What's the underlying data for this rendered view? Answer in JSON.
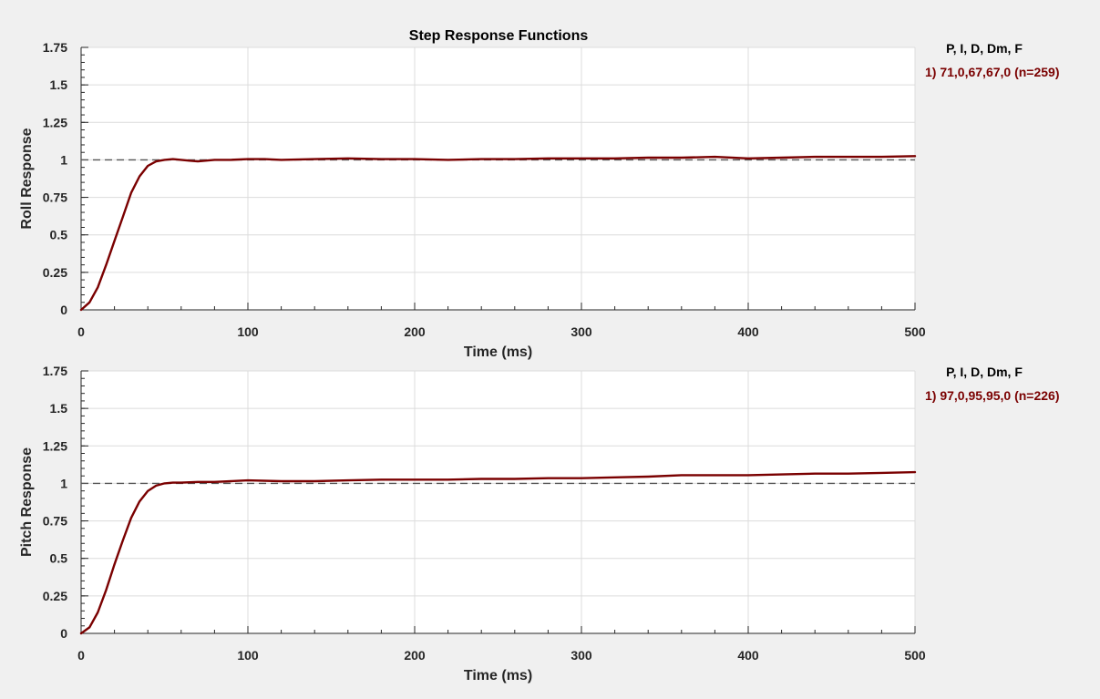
{
  "figure_title": "Step Response Functions",
  "colors": {
    "background": "#f0f0f0",
    "plot_area": "#ffffff",
    "grid": "#dcdcdc",
    "axis": "#262626",
    "response_line": "#7a0000",
    "reference_line": "#555555"
  },
  "chart_data": [
    {
      "type": "line",
      "title": "Step Response Functions",
      "xlabel": "Time (ms)",
      "ylabel": "Roll Response",
      "xlim": [
        0,
        500
      ],
      "ylim": [
        0,
        1.75
      ],
      "x_ticks": [
        0,
        100,
        200,
        300,
        400,
        500
      ],
      "x_tick_labels": [
        "0",
        "100",
        "200",
        "300",
        "400",
        "500"
      ],
      "y_ticks": [
        0,
        0.25,
        0.5,
        0.75,
        1,
        1.25,
        1.5,
        1.75
      ],
      "y_tick_labels": [
        "0",
        "0.25",
        "0.5",
        "0.75",
        "1",
        "1.25",
        "1.5",
        "1.75"
      ],
      "grid": true,
      "reference_line": {
        "y": 1,
        "style": "dashed"
      },
      "legend_position": "right",
      "legend_header": "P, I, D, Dm, F",
      "series": [
        {
          "name": "1) 71,0,67,67,0  (n=259)",
          "color": "#7a0000",
          "x": [
            0,
            5,
            10,
            15,
            20,
            25,
            30,
            35,
            40,
            45,
            50,
            55,
            60,
            65,
            70,
            80,
            90,
            100,
            110,
            120,
            140,
            160,
            180,
            200,
            220,
            240,
            260,
            280,
            300,
            320,
            340,
            360,
            380,
            400,
            420,
            440,
            460,
            480,
            500
          ],
          "y": [
            0,
            0.05,
            0.15,
            0.3,
            0.46,
            0.62,
            0.78,
            0.89,
            0.96,
            0.99,
            1.0,
            1.005,
            1.0,
            0.995,
            0.99,
            1.0,
            1.0,
            1.005,
            1.005,
            1.0,
            1.005,
            1.01,
            1.005,
            1.005,
            1.0,
            1.005,
            1.005,
            1.01,
            1.01,
            1.01,
            1.015,
            1.015,
            1.02,
            1.01,
            1.015,
            1.02,
            1.02,
            1.02,
            1.025
          ]
        }
      ]
    },
    {
      "type": "line",
      "xlabel": "Time (ms)",
      "ylabel": "Pitch Response",
      "xlim": [
        0,
        500
      ],
      "ylim": [
        0,
        1.75
      ],
      "x_ticks": [
        0,
        100,
        200,
        300,
        400,
        500
      ],
      "x_tick_labels": [
        "0",
        "100",
        "200",
        "300",
        "400",
        "500"
      ],
      "y_ticks": [
        0,
        0.25,
        0.5,
        0.75,
        1,
        1.25,
        1.5,
        1.75
      ],
      "y_tick_labels": [
        "0",
        "0.25",
        "0.5",
        "0.75",
        "1",
        "1.25",
        "1.5",
        "1.75"
      ],
      "grid": true,
      "reference_line": {
        "y": 1,
        "style": "dashed"
      },
      "legend_position": "right",
      "legend_header": "P, I, D, Dm, F",
      "series": [
        {
          "name": "1) 97,0,95,95,0  (n=226)",
          "color": "#7a0000",
          "x": [
            0,
            5,
            10,
            15,
            20,
            25,
            30,
            35,
            40,
            45,
            50,
            55,
            60,
            70,
            80,
            90,
            100,
            120,
            140,
            160,
            180,
            200,
            220,
            240,
            260,
            280,
            300,
            320,
            340,
            360,
            380,
            400,
            420,
            440,
            460,
            480,
            500
          ],
          "y": [
            0,
            0.04,
            0.14,
            0.29,
            0.46,
            0.62,
            0.77,
            0.88,
            0.95,
            0.985,
            1.0,
            1.005,
            1.005,
            1.01,
            1.01,
            1.015,
            1.02,
            1.015,
            1.015,
            1.02,
            1.025,
            1.025,
            1.025,
            1.03,
            1.03,
            1.035,
            1.035,
            1.04,
            1.045,
            1.055,
            1.055,
            1.055,
            1.06,
            1.065,
            1.065,
            1.07,
            1.075
          ]
        }
      ]
    }
  ]
}
